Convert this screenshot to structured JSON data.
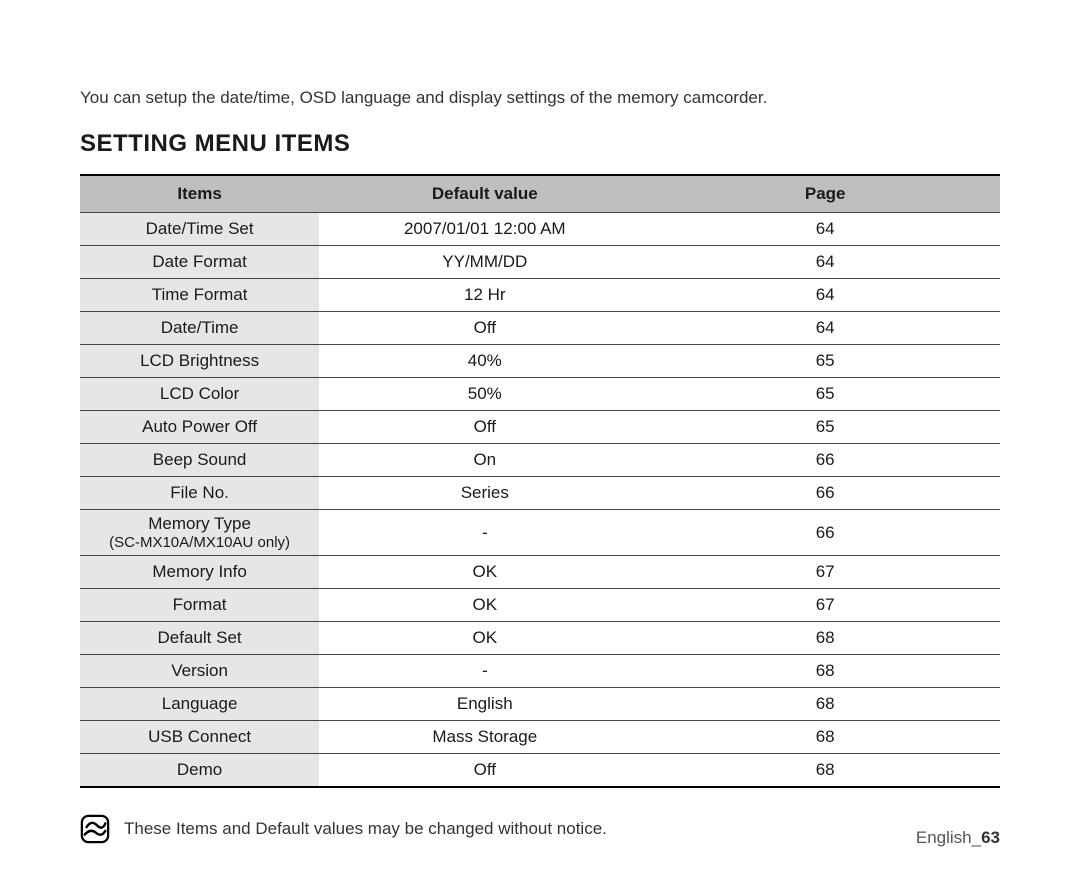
{
  "intro": "You can setup the date/time, OSD language and display settings of the memory camcorder.",
  "heading": "SETTING MENU ITEMS",
  "table": {
    "columns": [
      "Items",
      "Default value",
      "Page"
    ],
    "col_widths_pct": [
      26,
      36,
      38
    ],
    "header_bg": "#bfbfbf",
    "items_bg": "#e6e6e6",
    "border_color": "#444444",
    "rows": [
      {
        "item": "Date/Time Set",
        "sub": "",
        "default": "2007/01/01 12:00 AM",
        "page": "64"
      },
      {
        "item": "Date Format",
        "sub": "",
        "default": "YY/MM/DD",
        "page": "64"
      },
      {
        "item": "Time Format",
        "sub": "",
        "default": "12 Hr",
        "page": "64"
      },
      {
        "item": "Date/Time",
        "sub": "",
        "default": "Off",
        "page": "64"
      },
      {
        "item": "LCD Brightness",
        "sub": "",
        "default": "40%",
        "page": "65"
      },
      {
        "item": "LCD Color",
        "sub": "",
        "default": "50%",
        "page": "65"
      },
      {
        "item": "Auto Power Off",
        "sub": "",
        "default": "Off",
        "page": "65"
      },
      {
        "item": "Beep Sound",
        "sub": "",
        "default": "On",
        "page": "66"
      },
      {
        "item": "File No.",
        "sub": "",
        "default": "Series",
        "page": "66"
      },
      {
        "item": "Memory Type",
        "sub": "(SC-MX10A/MX10AU only)",
        "default": "-",
        "page": "66"
      },
      {
        "item": "Memory Info",
        "sub": "",
        "default": "OK",
        "page": "67"
      },
      {
        "item": "Format",
        "sub": "",
        "default": "OK",
        "page": "67"
      },
      {
        "item": "Default Set",
        "sub": "",
        "default": "OK",
        "page": "68"
      },
      {
        "item": "Version",
        "sub": "",
        "default": "-",
        "page": "68"
      },
      {
        "item": "Language",
        "sub": "",
        "default": "English",
        "page": "68"
      },
      {
        "item": "USB Connect",
        "sub": "",
        "default": "Mass Storage",
        "page": "68"
      },
      {
        "item": "Demo",
        "sub": "",
        "default": "Off",
        "page": "68"
      }
    ]
  },
  "note": "These Items and Default values may be changed without notice.",
  "footer_lang": "English_",
  "footer_page": "63"
}
